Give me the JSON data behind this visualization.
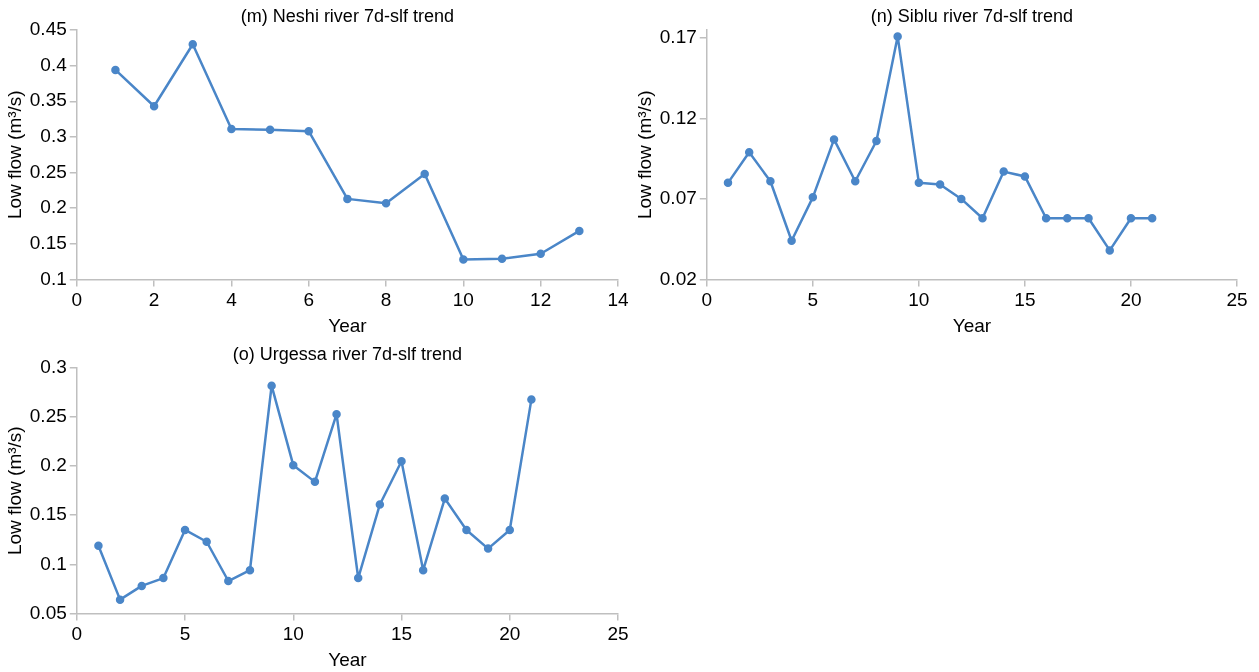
{
  "chart_data": [
    {
      "type": "line",
      "title": "(m) Neshi river 7d-slf trend",
      "xlabel": "Year",
      "ylabel": "Low flow (m³/s)",
      "marker": "circle",
      "line_style": "solid",
      "x": [
        1,
        2,
        3,
        4,
        5,
        6,
        7,
        8,
        9,
        10,
        11,
        12,
        13
      ],
      "series": [
        {
          "color": "#4a86c8",
          "values": [
            0.394,
            0.343,
            0.43,
            0.311,
            0.31,
            0.308,
            0.213,
            0.207,
            0.248,
            0.128,
            0.129,
            0.136,
            0.168
          ]
        }
      ],
      "xlim": [
        0,
        14
      ],
      "xticks": [
        0,
        2,
        4,
        6,
        8,
        10,
        12,
        14
      ],
      "ylim": [
        0.1,
        0.45
      ],
      "yticks": [
        0.1,
        0.15,
        0.2,
        0.25,
        0.3,
        0.35,
        0.4,
        0.45
      ]
    },
    {
      "type": "line",
      "title": "(n) Siblu river 7d-slf trend",
      "xlabel": "Year",
      "ylabel": "Low flow (m³/s)",
      "marker": "circle",
      "line_style": "solid",
      "x": [
        1,
        2,
        3,
        4,
        5,
        6,
        7,
        8,
        9,
        10,
        11,
        12,
        13,
        14,
        15,
        16,
        17,
        18,
        19,
        20,
        21
      ],
      "series": [
        {
          "color": "#4a86c8",
          "values": [
            0.08,
            0.099,
            0.081,
            0.044,
            0.071,
            0.107,
            0.081,
            0.106,
            0.171,
            0.08,
            0.079,
            0.07,
            0.058,
            0.087,
            0.084,
            0.058,
            0.058,
            0.058,
            0.038,
            0.058,
            0.058
          ]
        }
      ],
      "xlim": [
        0,
        25
      ],
      "xticks": [
        0,
        5,
        10,
        15,
        20,
        25
      ],
      "ylim": [
        0.02,
        0.175
      ],
      "yticks": [
        0.02,
        0.07,
        0.12,
        0.17
      ]
    },
    {
      "type": "line",
      "title": "(o) Urgessa river 7d-slf trend",
      "xlabel": "Year",
      "ylabel": "Low flow (m³/s)",
      "marker": "circle",
      "line_style": "solid",
      "x": [
        1,
        2,
        3,
        4,
        5,
        6,
        7,
        8,
        9,
        10,
        11,
        12,
        13,
        14,
        15,
        16,
        17,
        18,
        19,
        20,
        21
      ],
      "series": [
        {
          "color": "#4a86c8",
          "values": [
            0.119,
            0.064,
            0.078,
            0.086,
            0.135,
            0.123,
            0.083,
            0.094,
            0.282,
            0.201,
            0.184,
            0.253,
            0.086,
            0.161,
            0.205,
            0.094,
            0.167,
            0.135,
            0.116,
            0.135,
            0.268
          ]
        }
      ],
      "xlim": [
        0,
        25
      ],
      "xticks": [
        0,
        5,
        10,
        15,
        20,
        25
      ],
      "ylim": [
        0.05,
        0.3
      ],
      "yticks": [
        0.05,
        0.1,
        0.15,
        0.2,
        0.25,
        0.3
      ]
    }
  ]
}
